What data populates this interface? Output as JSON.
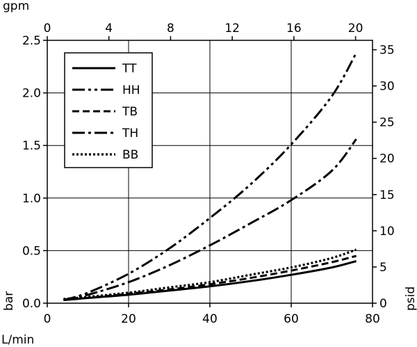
{
  "chart_data": {
    "type": "line",
    "title": "",
    "xlabel": "L/min",
    "ylabel": "bar",
    "x2label": "gpm",
    "y2label": "psid",
    "xlim": [
      0,
      80
    ],
    "ylim": [
      0,
      2.5
    ],
    "x2lim": [
      0,
      21.1
    ],
    "y2lim": [
      0,
      36.3
    ],
    "x_ticks": [
      "0",
      "20",
      "40",
      "60",
      "80"
    ],
    "y_ticks": [
      "0.0",
      "0.5",
      "1.0",
      "1.5",
      "2.0",
      "2.5"
    ],
    "x2_ticks": [
      "0",
      "4",
      "8",
      "12",
      "16",
      "20"
    ],
    "y2_ticks": [
      "0",
      "5",
      "10",
      "15",
      "20",
      "25",
      "30",
      "35"
    ],
    "grid": true,
    "legend": "top-left",
    "series": [
      {
        "name": "TT",
        "dash": "solid",
        "x": [
          4,
          10,
          20,
          30,
          40,
          50,
          60,
          70,
          76
        ],
        "y": [
          0.03,
          0.05,
          0.08,
          0.12,
          0.16,
          0.21,
          0.27,
          0.34,
          0.4
        ]
      },
      {
        "name": "HH",
        "dash": "dash-dot-dot",
        "x": [
          4,
          10,
          20,
          30,
          40,
          50,
          60,
          70,
          76
        ],
        "y": [
          0.03,
          0.1,
          0.28,
          0.52,
          0.81,
          1.13,
          1.51,
          1.97,
          2.38
        ]
      },
      {
        "name": "TB",
        "dash": "dash",
        "x": [
          4,
          10,
          20,
          30,
          40,
          50,
          60,
          70,
          76
        ],
        "y": [
          0.03,
          0.05,
          0.09,
          0.13,
          0.18,
          0.24,
          0.31,
          0.39,
          0.45
        ]
      },
      {
        "name": "TH",
        "dash": "dash-dot",
        "x": [
          4,
          10,
          20,
          30,
          40,
          50,
          60,
          70,
          76
        ],
        "y": [
          0.03,
          0.08,
          0.2,
          0.36,
          0.55,
          0.76,
          0.98,
          1.26,
          1.56
        ]
      },
      {
        "name": "BB",
        "dash": "dot",
        "x": [
          4,
          10,
          20,
          30,
          40,
          50,
          60,
          70,
          76
        ],
        "y": [
          0.04,
          0.06,
          0.1,
          0.15,
          0.2,
          0.27,
          0.34,
          0.43,
          0.51
        ]
      }
    ]
  }
}
